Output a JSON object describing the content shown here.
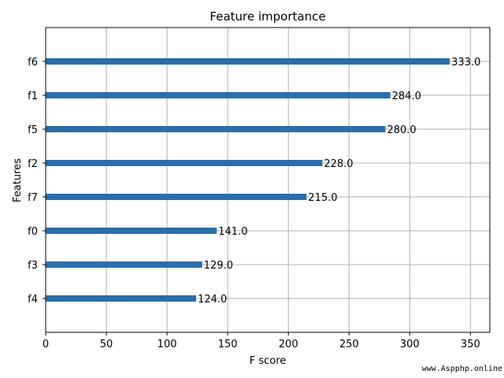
{
  "chart_data": {
    "type": "bar",
    "orientation": "horizontal",
    "title": "Feature importance",
    "xlabel": "F score",
    "ylabel": "Features",
    "categories": [
      "f6",
      "f1",
      "f5",
      "f2",
      "f7",
      "f0",
      "f3",
      "f4"
    ],
    "values": [
      333,
      284,
      280,
      228,
      215,
      141,
      129,
      124
    ],
    "value_labels": [
      "333.0",
      "284.0",
      "280.0",
      "228.0",
      "215.0",
      "141.0",
      "129.0",
      "124.0"
    ],
    "xlim": [
      0,
      366
    ],
    "xticks": [
      0,
      50,
      100,
      150,
      200,
      250,
      300,
      350
    ],
    "grid": true,
    "bar_color": "#2a6fab",
    "grid_color": "#b0b0b0"
  },
  "watermark": "www.Aspphp.online"
}
